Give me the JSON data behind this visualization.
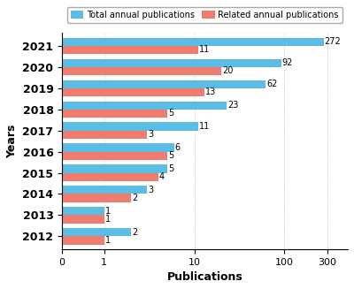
{
  "years": [
    "2021",
    "2020",
    "2019",
    "2018",
    "2017",
    "2016",
    "2015",
    "2014",
    "2013",
    "2012"
  ],
  "total": [
    272,
    92,
    62,
    23,
    11,
    6,
    5,
    3,
    1,
    2
  ],
  "related": [
    11,
    20,
    13,
    5,
    3,
    5,
    4,
    2,
    1,
    1
  ],
  "total_color": "#5bbde4",
  "related_color": "#f07b6e",
  "bar_height": 0.38,
  "xlabel": "Publications",
  "ylabel": "Years",
  "legend_total": "Total annual publications",
  "legend_related": "Related annual publications",
  "xtick_labels": [
    "0",
    "1",
    "10",
    "100",
    "300"
  ],
  "figsize": [
    4.0,
    3.27
  ],
  "dpi": 100,
  "bg_color": "#f5f5f5"
}
